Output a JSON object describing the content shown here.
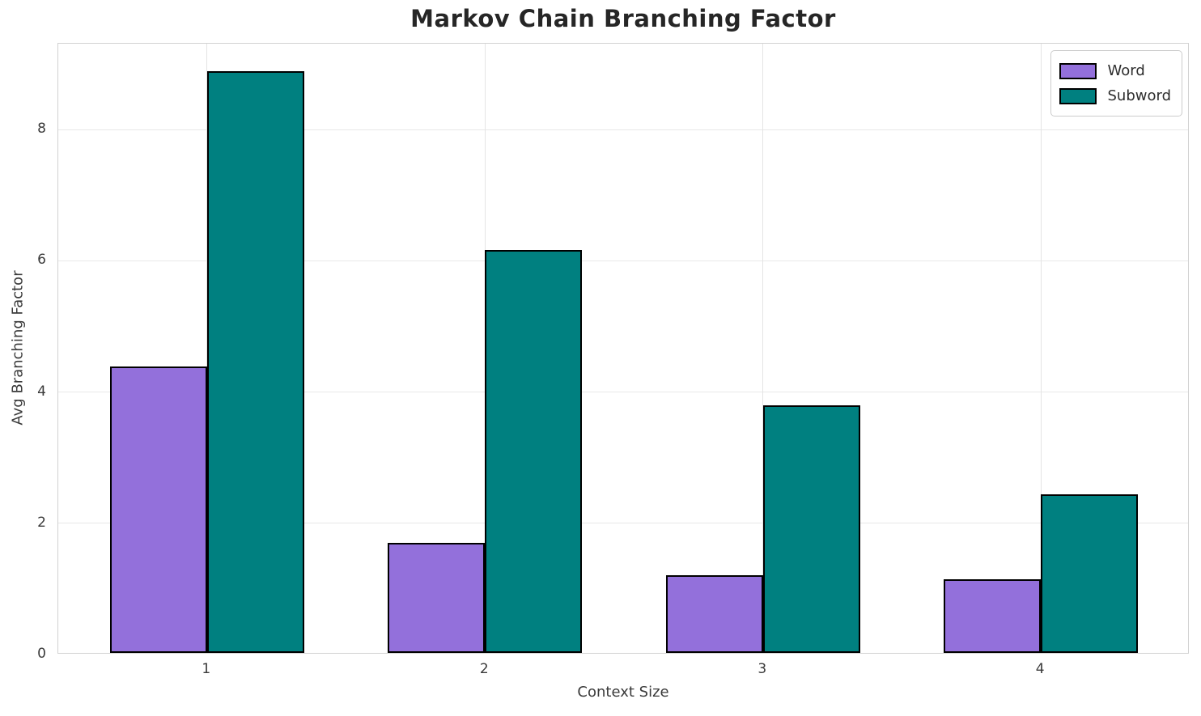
{
  "chart_data": {
    "type": "bar",
    "title": "Markov Chain Branching Factor",
    "xlabel": "Context Size",
    "ylabel": "Avg Branching Factor",
    "categories": [
      "1",
      "2",
      "3",
      "4"
    ],
    "series": [
      {
        "name": "Word",
        "color": "#9370DB",
        "values": [
          4.36,
          1.68,
          1.19,
          1.12
        ]
      },
      {
        "name": "Subword",
        "color": "#008080",
        "values": [
          8.87,
          6.14,
          3.77,
          2.42
        ]
      }
    ],
    "yticks": [
      "0",
      "2",
      "4",
      "6",
      "8"
    ],
    "ylim": [
      0,
      9.31
    ],
    "bar_edge_color": "#000000",
    "grid": true,
    "legend_position": "upper right"
  },
  "style": {
    "background": "#ffffff",
    "grid_color": "#e8e8e8",
    "spine_color": "#d2d2d2",
    "title_color": "#262626",
    "tick_color": "#3a3a3a"
  }
}
